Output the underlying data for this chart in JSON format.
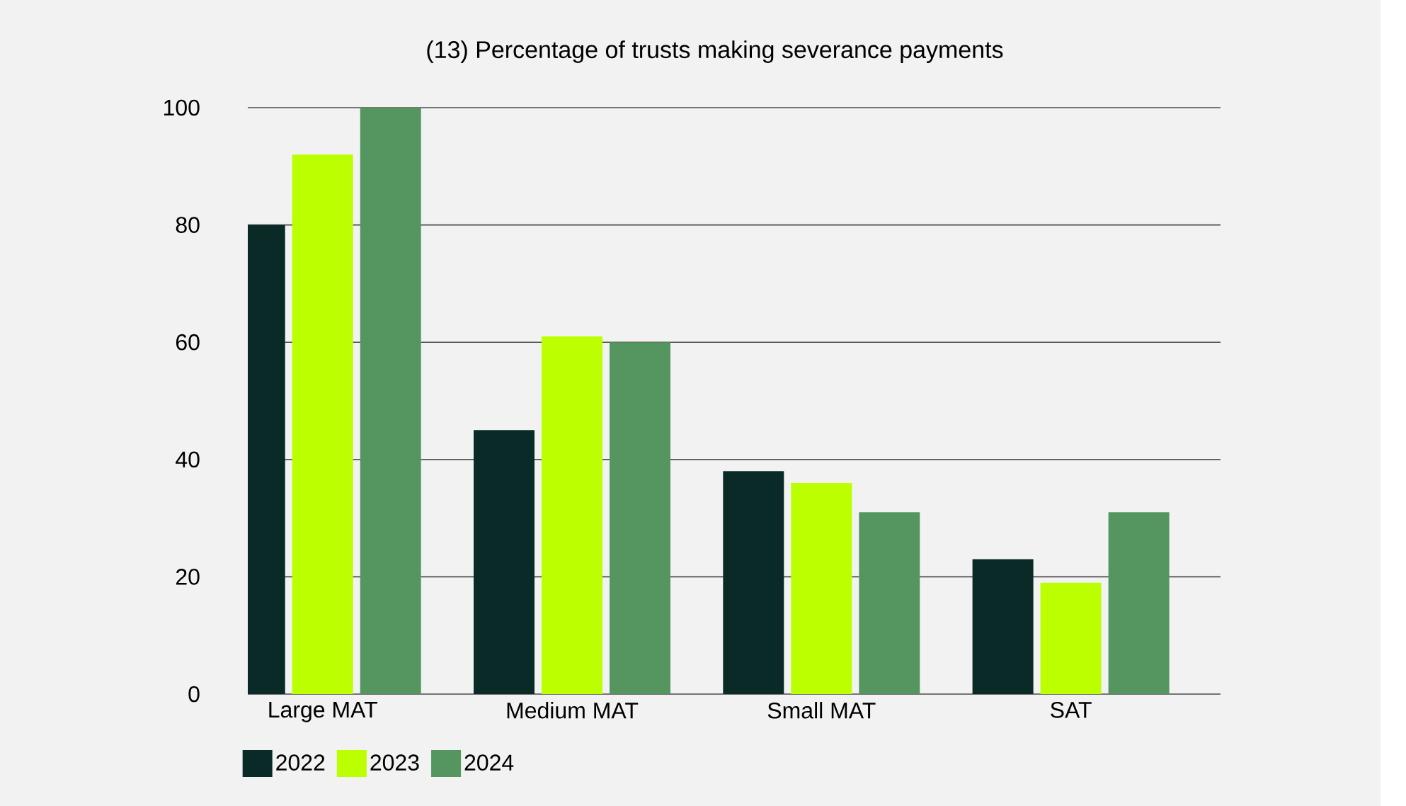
{
  "chart_data": {
    "type": "bar",
    "title": "(13) Percentage of trusts making severance payments",
    "categories": [
      "Large MAT",
      "Medium MAT",
      "Small MAT",
      "SAT"
    ],
    "series": [
      {
        "name": "2022",
        "color": "#0a2a28",
        "values": [
          80,
          45,
          38,
          23
        ]
      },
      {
        "name": "2023",
        "color": "#bbff00",
        "values": [
          92,
          61,
          36,
          19
        ]
      },
      {
        "name": "2024",
        "color": "#559660",
        "values": [
          100,
          60,
          31,
          31
        ]
      }
    ],
    "ylim": [
      0,
      100
    ],
    "yticks": [
      0,
      20,
      40,
      60,
      80,
      100
    ],
    "grid": "y",
    "legend": "bottom left"
  }
}
